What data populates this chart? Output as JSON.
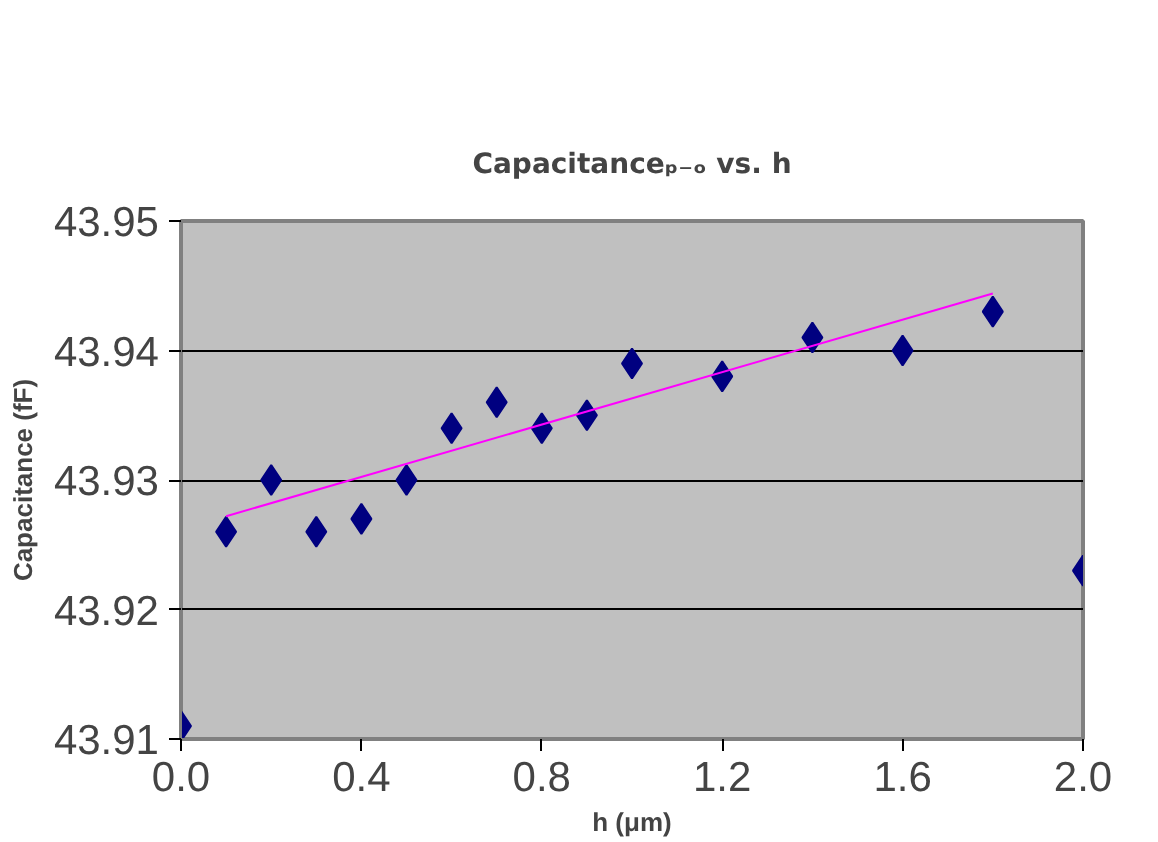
{
  "chart_data": {
    "type": "scatter",
    "title": "Capacitanceₚ₋ₒ vs. h",
    "xlabel": "h (μm)",
    "ylabel": "Capacitance (fF)",
    "x": [
      0.0,
      0.1,
      0.2,
      0.3,
      0.4,
      0.5,
      0.6,
      0.7,
      0.8,
      0.9,
      1.0,
      1.2,
      1.4,
      1.6,
      1.8,
      2.0
    ],
    "series": [
      {
        "color": "#000080",
        "marker": "diamond",
        "values": [
          43.911,
          43.926,
          43.93,
          43.926,
          43.927,
          43.93,
          43.934,
          43.936,
          43.934,
          43.935,
          43.939,
          43.938,
          43.941,
          43.94,
          43.943,
          43.923
        ]
      },
      {
        "type": "line",
        "marker": "none",
        "color": "#ff00ff",
        "x": [
          0.1,
          1.8
        ],
        "values": [
          43.9272,
          43.9444
        ]
      }
    ],
    "xlim": [
      0.0,
      2.0
    ],
    "ylim": [
      43.91,
      43.95
    ],
    "xticks": [
      {
        "value": 0,
        "label": "0.0"
      },
      0.4,
      0.8,
      1.2,
      1.6,
      {
        "value": 2,
        "label": "2.0"
      }
    ],
    "yticks": [
      43.91,
      43.92,
      43.93,
      43.94,
      43.95
    ],
    "grid": "y"
  }
}
